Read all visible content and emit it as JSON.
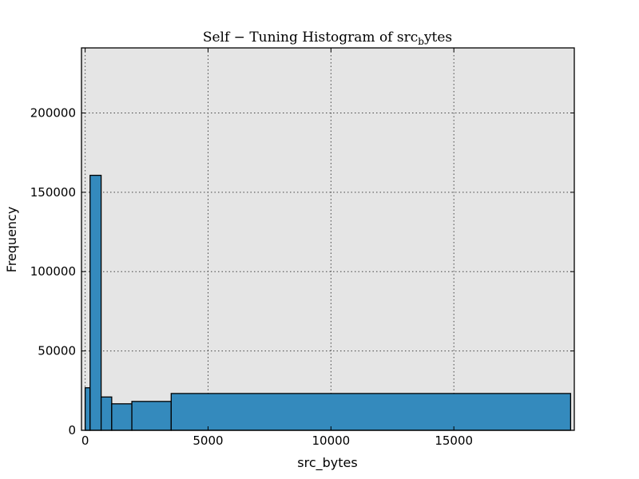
{
  "chart_data": {
    "type": "bar",
    "title": {
      "prefix": "Self − Tuning Histogram of src",
      "subscript": "b",
      "suffix": "ytes"
    },
    "xlabel": "src_bytes",
    "ylabel": "Frequency",
    "xlim": [
      -150,
      19900
    ],
    "ylim": [
      0,
      241000
    ],
    "xticks": [
      0,
      5000,
      10000,
      15000
    ],
    "xtick_labels": [
      "0",
      "5000",
      "10000",
      "15000"
    ],
    "yticks": [
      0,
      50000,
      100000,
      150000,
      200000
    ],
    "ytick_labels": [
      "0",
      "50000",
      "100000",
      "150000",
      "200000"
    ],
    "grid": true,
    "bins": [
      {
        "x0": 0,
        "x1": 200,
        "count": 26800
      },
      {
        "x0": 200,
        "x1": 650,
        "count": 160700
      },
      {
        "x0": 650,
        "x1": 1080,
        "count": 21000
      },
      {
        "x0": 1080,
        "x1": 1900,
        "count": 16700
      },
      {
        "x0": 1900,
        "x1": 3500,
        "count": 18200
      },
      {
        "x0": 3500,
        "x1": 19750,
        "count": 23200
      }
    ],
    "colors": {
      "bar": "#348abd",
      "plot_bg": "#e5e5e5"
    }
  }
}
